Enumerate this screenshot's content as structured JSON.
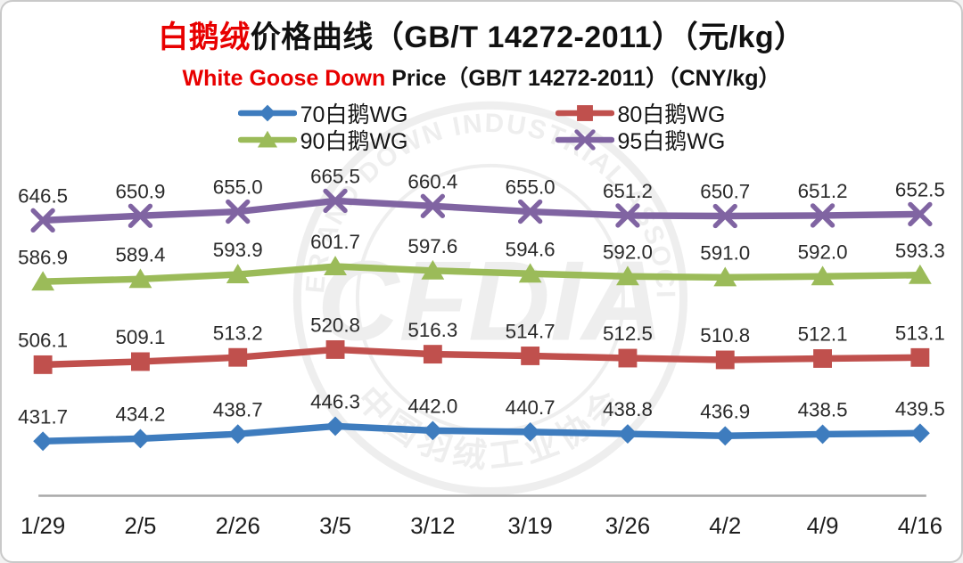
{
  "page": {
    "background": "#ffffff",
    "border_color": "#c9c9c9"
  },
  "header": {
    "title_highlight": "白鹅绒",
    "title_rest": "价格曲线（GB/T 14272-2011）（元/kg）",
    "subtitle_highlight": "White Goose Down ",
    "subtitle_rest": "Price（GB/T 14272-2011）（CNY/kg）",
    "highlight_color": "#e80000"
  },
  "watermark": {
    "top_text": "FEATHER AND DOWN INDUSTRIAL ASSOCIATION",
    "bottom_text": "中国羽绒工业协会",
    "center_text": "CFDIA",
    "color": "#999999"
  },
  "chart_data": {
    "type": "line",
    "title": "白鹅绒价格曲线（GB/T 14272-2011）（元/kg）",
    "subtitle": "White Goose Down Price（GB/T 14272-2011）（CNY/kg）",
    "xlabel": "",
    "ylabel": "",
    "grid": false,
    "legend_position": "top",
    "data_labels": true,
    "ylim": [
      420,
      680
    ],
    "categories": [
      "1/29",
      "2/5",
      "2/26",
      "3/5",
      "3/12",
      "3/19",
      "3/26",
      "4/2",
      "4/9",
      "4/16"
    ],
    "series": [
      {
        "name": "70白鹅WG",
        "marker": "diamond",
        "color": "#3E7CBE",
        "values": [
          431.7,
          434.2,
          438.7,
          446.3,
          442.0,
          440.7,
          438.8,
          436.9,
          438.5,
          439.5
        ]
      },
      {
        "name": "80白鹅WG",
        "marker": "square",
        "color": "#C0504D",
        "values": [
          506.1,
          509.1,
          513.2,
          520.8,
          516.3,
          514.7,
          512.5,
          510.8,
          512.1,
          513.1
        ]
      },
      {
        "name": "90白鹅WG",
        "marker": "triangle",
        "color": "#9BBB59",
        "values": [
          586.9,
          589.4,
          593.9,
          601.7,
          597.6,
          594.6,
          592.0,
          591.0,
          592.0,
          593.3
        ]
      },
      {
        "name": "95白鹅WG",
        "marker": "x",
        "color": "#8064A2",
        "values": [
          646.5,
          650.9,
          655.0,
          665.5,
          660.4,
          655.0,
          651.2,
          650.7,
          651.2,
          652.5
        ]
      }
    ]
  }
}
